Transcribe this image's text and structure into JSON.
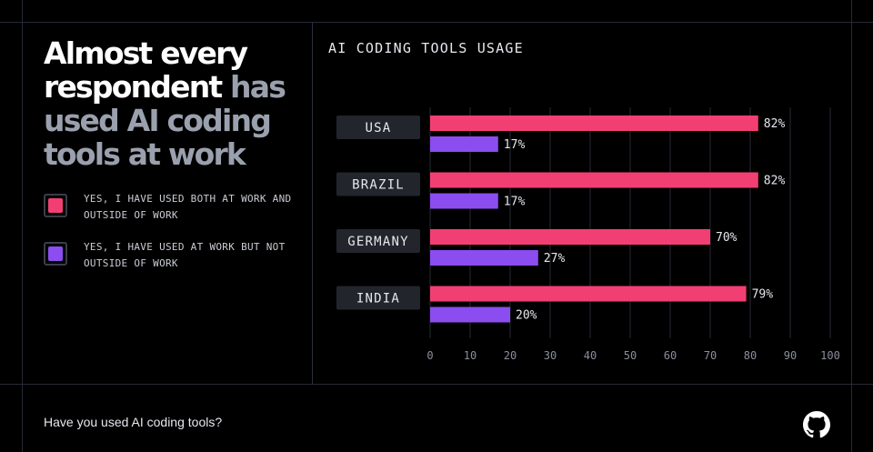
{
  "headline": {
    "part1": "Almost every respondent ",
    "part2": "has used AI coding tools at work"
  },
  "legend": [
    {
      "label": "YES, I HAVE USED BOTH AT WORK AND OUTSIDE OF WORK",
      "color": "#f23f73"
    },
    {
      "label": "YES, I HAVE USED AT WORK BUT NOT OUTSIDE OF WORK",
      "color": "#8b4df0"
    }
  ],
  "question": "Have you used AI coding tools?",
  "logo_icon": "github-icon",
  "chart_data": {
    "type": "bar",
    "orientation": "horizontal",
    "title": "AI CODING TOOLS USAGE",
    "categories": [
      "USA",
      "BRAZIL",
      "GERMANY",
      "INDIA"
    ],
    "series": [
      {
        "name": "YES, I HAVE USED BOTH AT WORK AND OUTSIDE OF WORK",
        "values": [
          82,
          82,
          70,
          79
        ],
        "color": "#f23f73"
      },
      {
        "name": "YES, I HAVE USED AT WORK BUT NOT OUTSIDE OF WORK",
        "values": [
          17,
          17,
          27,
          20
        ],
        "color": "#8b4df0"
      }
    ],
    "value_labels": [
      [
        "82%",
        "82%",
        "70%",
        "79%"
      ],
      [
        "17%",
        "17%",
        "27%",
        "20%"
      ]
    ],
    "xlim": [
      0,
      100
    ],
    "xticks": [
      "0",
      "10",
      "20",
      "30",
      "40",
      "50",
      "60",
      "70",
      "80",
      "90",
      "100"
    ],
    "grid": true,
    "legend_position": "left panel"
  }
}
